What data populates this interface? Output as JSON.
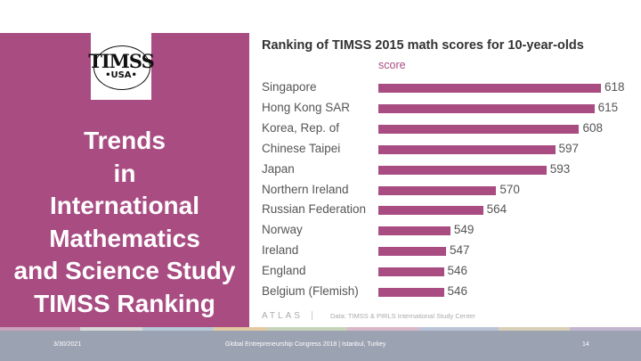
{
  "slide": {
    "logo_top": "TIMSS",
    "logo_bottom": "•USA•",
    "title_lines": [
      "Trends",
      "in",
      "International",
      "Mathematics",
      "and Science Study",
      "TIMSS Ranking"
    ],
    "footer_date": "3/30/2021",
    "footer_center": "Global Entrepreneurship Congress 2018 | Istanbul, Turkey",
    "footer_page": "14",
    "accent_color": "#a84c82",
    "footer_color": "#9ba2b1"
  },
  "chart_data": {
    "type": "bar",
    "orientation": "horizontal",
    "title": "Ranking of TIMSS 2015 math scores for 10-year-olds",
    "legend": [
      "score"
    ],
    "categories": [
      "Singapore",
      "Hong Kong SAR",
      "Korea, Rep. of",
      "Chinese Taipei",
      "Japan",
      "Northern Ireland",
      "Russian Federation",
      "Norway",
      "Ireland",
      "England",
      "Belgium (Flemish)"
    ],
    "series": [
      {
        "name": "score",
        "values": [
          618,
          615,
          608,
          597,
          593,
          570,
          564,
          549,
          547,
          546,
          546
        ]
      }
    ],
    "source_logo": "ATLAS",
    "source": "Data: TIMSS & PIRLS International Study Center",
    "bar_color": "#a84c82"
  }
}
